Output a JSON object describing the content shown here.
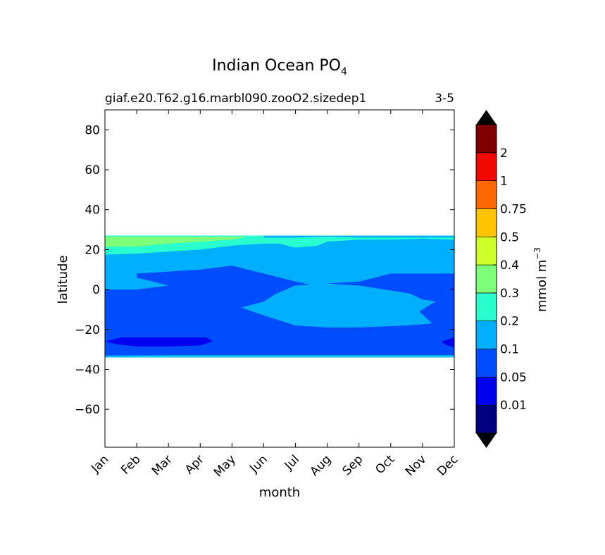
{
  "chart_data": {
    "type": "heatmap",
    "title": "Indian Ocean PO",
    "title_subscript": "4",
    "subtitle_left": "giaf.e20.T62.g16.marbl090.zooO2.sizedep1",
    "subtitle_right": "3-5",
    "xlabel": "month",
    "ylabel": "latitude",
    "x_ticks": [
      "Jan",
      "Feb",
      "Mar",
      "Apr",
      "May",
      "Jun",
      "Jul",
      "Aug",
      "Sep",
      "Oct",
      "Nov",
      "Dec"
    ],
    "y_ticks": [
      80,
      60,
      40,
      20,
      0,
      -20,
      -40,
      -60
    ],
    "y_tick_labels": [
      "80",
      "60",
      "40",
      "20",
      "0",
      "−20",
      "−40",
      "−60"
    ],
    "ylim": [
      -79,
      90
    ],
    "x_range_months": [
      1,
      12
    ],
    "grid": false,
    "colorbar": {
      "label": "mmol m",
      "label_superscript": "−3",
      "levels": [
        0.01,
        0.05,
        0.1,
        0.2,
        0.3,
        0.4,
        0.5,
        0.75,
        1,
        2
      ],
      "level_labels": [
        "0.01",
        "0.05",
        "0.1",
        "0.2",
        "0.3",
        "0.4",
        "0.5",
        "0.75",
        "1",
        "2"
      ],
      "colors": [
        "#000080",
        "#0000f0",
        "#004cff",
        "#00b0ff",
        "#29ffce",
        "#7dff7a",
        "#ceff29",
        "#ffc400",
        "#ff6800",
        "#f10800",
        "#800000"
      ],
      "extend_low_color": "#000000",
      "extend_high_color": "#000000"
    },
    "data_extent_lat": [
      -34,
      27
    ],
    "contour_regions": [
      {
        "level": "0.1-0.2",
        "color": "#00b0ff",
        "desc": "background band from about -34 to 27 latitude"
      },
      {
        "level": "0.05-0.1",
        "color": "#004cff",
        "desc": "large region roughly -32 to 8 latitude all year"
      },
      {
        "level": "0.01-0.05",
        "color": "#0000f0",
        "desc": "small patch near -26 latitude Jan-Apr and in Dec"
      },
      {
        "level": "0.2-0.3",
        "color": "#29ffce",
        "desc": "band near 16-26 latitude and near -33 latitude"
      },
      {
        "level": "0.3-0.4",
        "color": "#7dff7a",
        "desc": "patch near 22-26 latitude Jan-May"
      }
    ]
  }
}
